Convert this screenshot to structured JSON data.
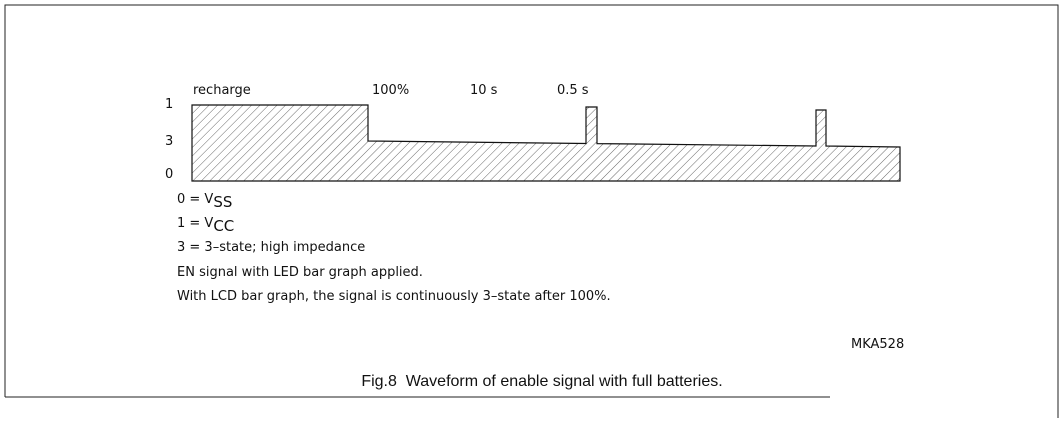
{
  "levels": {
    "high": "1",
    "tristate": "3",
    "low": "0"
  },
  "phases": {
    "recharge": "recharge",
    "full": "100%",
    "period": "10 s",
    "pulse": "0.5 s"
  },
  "legend": [
    {
      "prefix": "0 = V",
      "sub": "SS"
    },
    {
      "prefix": "1 = V",
      "sub": "CC"
    },
    {
      "text": "3 = 3–state; high impedance"
    }
  ],
  "notes": [
    "EN signal with LED bar graph applied.",
    "With LCD bar graph, the signal is continuously 3–state after 100%."
  ],
  "code": "MKA528",
  "caption": "Fig.8  Waveform of enable signal with full batteries."
}
